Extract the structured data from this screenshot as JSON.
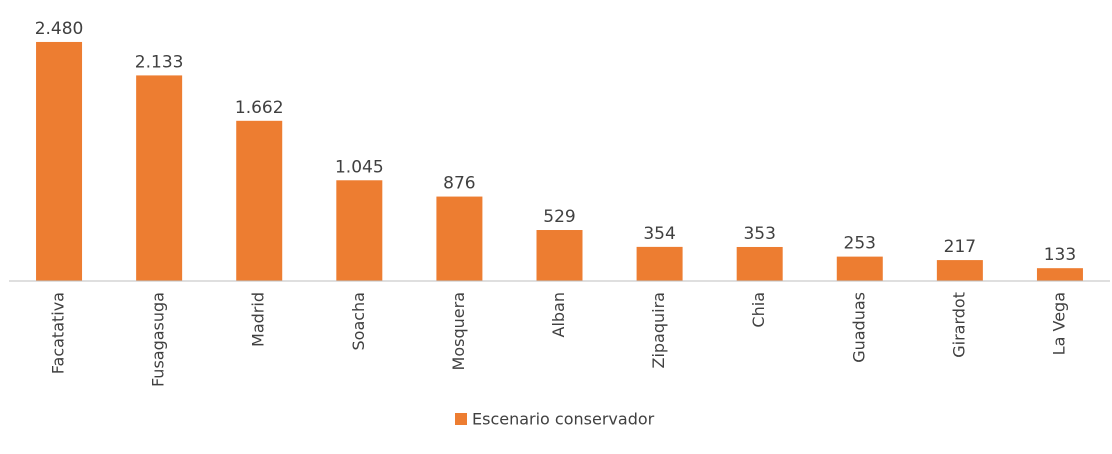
{
  "chart_data": {
    "type": "bar",
    "categories": [
      "Facatativa",
      "Fusagasuga",
      "Madrid",
      "Soacha",
      "Mosquera",
      "Alban",
      "Zipaquira",
      "Chia",
      "Guaduas",
      "Girardot",
      "La Vega"
    ],
    "series": [
      {
        "name": "Escenario conservador",
        "color": "#ed7d31",
        "values": [
          2480,
          2133,
          1662,
          1045,
          876,
          529,
          354,
          353,
          253,
          217,
          133
        ],
        "value_labels": [
          "2.480",
          "2.133",
          "1.662",
          "1.045",
          "876",
          "529",
          "354",
          "353",
          "253",
          "217",
          "133"
        ]
      }
    ],
    "ylim": [
      0,
      2600
    ],
    "legend": "bottom"
  }
}
